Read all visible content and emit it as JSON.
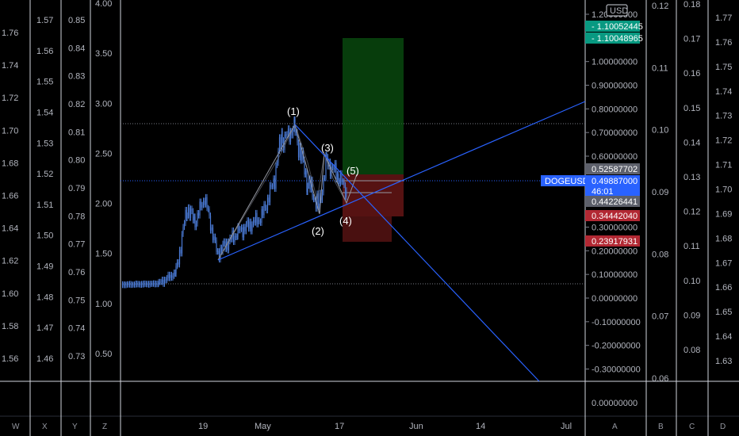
{
  "chart_data": {
    "type": "candlestick",
    "symbol": "DOGEUSD",
    "currency": "USD",
    "x_ticks": [
      "19",
      "May",
      "17",
      "Jun",
      "14",
      "Jul"
    ],
    "y_ticks_main": [
      "1.20000000",
      "1.00000000",
      "0.90000000",
      "0.80000000",
      "0.70000000",
      "0.60000000",
      "0.50000000",
      "0.40000000",
      "0.30000000",
      "0.20000000",
      "0.10000000",
      "0.00000000",
      "-0.10000000",
      "-0.20000000",
      "-0.30000000"
    ],
    "y_ticks_bottom": [
      "0.00000000"
    ],
    "left_scales": [
      {
        "id": "W",
        "labels": [
          "1.76",
          "1.74",
          "1.72",
          "1.70",
          "1.68",
          "1.66",
          "1.64",
          "1.62",
          "1.60",
          "1.58",
          "1.56"
        ]
      },
      {
        "id": "X",
        "labels": [
          "1.57",
          "1.56",
          "1.55",
          "1.54",
          "1.53",
          "1.52",
          "1.51",
          "1.50",
          "1.49",
          "1.48",
          "1.47",
          "1.46"
        ]
      },
      {
        "id": "Y",
        "labels": [
          "0.85",
          "0.84",
          "0.83",
          "0.82",
          "0.81",
          "0.80",
          "0.79",
          "0.78",
          "0.77",
          "0.76",
          "0.75",
          "0.74",
          "0.73"
        ]
      },
      {
        "id": "Z",
        "labels": [
          "4.00",
          "3.50",
          "3.00",
          "2.50",
          "2.00",
          "1.50",
          "1.00",
          "0.50"
        ]
      }
    ],
    "right_scales": [
      {
        "id": "B",
        "labels": [
          "0.12",
          "0.11",
          "0.10",
          "0.09",
          "0.08",
          "0.07",
          "0.06"
        ],
        "ticks": [
          0.12,
          0.11,
          0.1,
          0.09,
          0.08,
          0.07,
          0.06
        ]
      },
      {
        "id": "C",
        "labels": [
          "0.18",
          "0.17",
          "0.16",
          "0.15",
          "0.14",
          "0.13",
          "0.12",
          "0.11",
          "0.10",
          "0.09",
          "0.08"
        ]
      },
      {
        "id": "D",
        "labels": [
          "1.77",
          "1.76",
          "1.75",
          "1.74",
          "1.73",
          "1.72",
          "1.71",
          "1.70",
          "1.69",
          "1.68",
          "1.67",
          "1.66",
          "1.65",
          "1.64",
          "1.63"
        ]
      }
    ],
    "price_tags": [
      {
        "label": "1.10052445",
        "color": "#089981",
        "value": 1.10052445
      },
      {
        "label": "1.10048965",
        "color": "#089981",
        "value": 1.10048965
      },
      {
        "label": "0.52587702",
        "color": "#5d606b",
        "value": 0.52587702
      },
      {
        "label": "DOGEUSD",
        "color": "#2962ff",
        "value": 0.49887
      },
      {
        "label": "0.49887000",
        "color": "#2962ff",
        "value": 0.49887
      },
      {
        "label": "46:01",
        "color": "#2962ff",
        "value": 0.49887
      },
      {
        "label": "0.44226441",
        "color": "#5d606b",
        "value": 0.44226441
      },
      {
        "label": "0.34442040",
        "color": "#b22833",
        "value": 0.3444204
      },
      {
        "label": "0.23917931",
        "color": "#b22833",
        "value": 0.23917931
      }
    ],
    "wave_labels": [
      "(1)",
      "(2)",
      "(3)",
      "(4)",
      "(5)"
    ],
    "colors": {
      "up": "#4a7ad4",
      "down": "#4a7ad4",
      "target": "#0c5c14",
      "stop": "#7a1a1a",
      "trendline": "#2962ff"
    }
  },
  "corner_letters": {
    "W": "W",
    "X": "X",
    "Y": "Y",
    "Z": "Z",
    "A": "A",
    "B": "B",
    "C": "C",
    "D": "D"
  }
}
